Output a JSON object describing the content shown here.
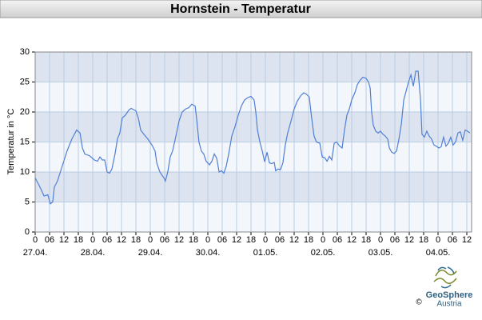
{
  "chart_data": {
    "type": "line",
    "title": "Hornstein - Temperatur",
    "ylabel": "Temperatur in °C",
    "color": "#4f7fd6",
    "x": [
      0,
      2,
      3.7,
      5.3,
      6.3,
      7.3,
      8,
      9.3,
      11.3,
      13.3,
      15.3,
      17.3,
      18.7,
      19.7,
      20.7,
      22.7,
      24.7,
      26,
      27,
      28,
      29,
      30,
      31,
      32,
      33.3,
      34.3,
      35.3,
      36.3,
      37.7,
      39,
      40,
      42,
      43,
      44,
      45.3,
      47,
      48.7,
      50,
      50.7,
      52,
      53.7,
      54.3,
      55.3,
      56.3,
      57.3,
      58.7,
      60,
      61.3,
      62.7,
      64,
      65.3,
      66.7,
      67.3,
      68.3,
      69.3,
      70.3,
      71.3,
      72.7,
      73.7,
      74.7,
      75.7,
      76.7,
      77.7,
      78.7,
      79.7,
      80.7,
      82,
      83.3,
      84.7,
      86,
      87.3,
      88.7,
      90,
      91.3,
      92,
      92.7,
      93.7,
      94.7,
      95.7,
      96.7,
      97.7,
      98.7,
      99.7,
      100.3,
      101.3,
      102.3,
      103.3,
      104.3,
      105.3,
      106.7,
      108,
      109.3,
      110.7,
      112,
      113,
      114.3,
      115.3,
      116.3,
      117.3,
      118.7,
      119.7,
      120.7,
      121.7,
      122.7,
      123.7,
      124.7,
      125.7,
      127,
      128,
      129,
      130,
      131,
      132,
      133.3,
      134.3,
      135.3,
      136.7,
      138,
      139,
      139.7,
      140.3,
      141,
      142,
      143,
      144,
      145,
      146,
      147,
      147.7,
      148.7,
      149.7,
      150.7,
      151.7,
      152.7,
      153.7,
      154.7,
      155.7,
      156.7,
      157.7,
      158.7,
      159.7,
      160.7,
      161.3,
      162.3,
      163.3,
      164.3,
      165.3,
      166.3,
      167.3,
      168.3,
      169.3,
      170.3,
      171.3,
      172.3,
      173.3,
      174.3,
      175.3,
      176.3,
      177.3,
      178.3,
      179.3,
      180.3,
      181.3
    ],
    "values": [
      9,
      7.5,
      6,
      6.2,
      4.7,
      5,
      7.5,
      8.5,
      11,
      13.5,
      15.5,
      17,
      16.5,
      14,
      13,
      12.7,
      12,
      11.8,
      12.5,
      12,
      12,
      10,
      9.8,
      10.5,
      13,
      15.5,
      16.5,
      19,
      19.5,
      20.3,
      20.6,
      20.2,
      19,
      17,
      16.3,
      15.5,
      14.5,
      13.5,
      11.5,
      10,
      9,
      8.5,
      10,
      12.5,
      13.5,
      16,
      18.5,
      20,
      20.5,
      20.7,
      21.3,
      21,
      19,
      15,
      13.5,
      13,
      11.8,
      11.2,
      11.8,
      13,
      12.3,
      10,
      10.2,
      9.8,
      11,
      13,
      16,
      17.5,
      19.5,
      21,
      22,
      22.4,
      22.6,
      22,
      20,
      17,
      15,
      13.5,
      11.7,
      13.3,
      11.5,
      11.4,
      11.6,
      10.2,
      10.5,
      10.4,
      11.5,
      14.5,
      16.5,
      18.5,
      20.5,
      21.8,
      22.7,
      23.2,
      23,
      22.5,
      19,
      16,
      15,
      14.8,
      12.5,
      12.4,
      11.8,
      12.6,
      12,
      14.8,
      15,
      14.3,
      14,
      17,
      19.5,
      20.5,
      22,
      23.2,
      24.5,
      25.2,
      25.8,
      25.6,
      25,
      24,
      20,
      17.8,
      16.8,
      16.5,
      16.8,
      16.3,
      16,
      15.5,
      14,
      13.3,
      13.1,
      13.5,
      15.5,
      18,
      22,
      23.5,
      25,
      26.2,
      24.3,
      26.8,
      26.8,
      22,
      16.3,
      15.8,
      16.8,
      16,
      15.5,
      14.5,
      14.3,
      14,
      14.2,
      15.8,
      14.3,
      14.8,
      15.8,
      14.5,
      15,
      16.5,
      16.7,
      15.3,
      17,
      16.8,
      16.5
    ],
    "xlim": [
      0,
      182
    ],
    "xticks": [
      0,
      {
        "value": 6,
        "label": "06"
      },
      12,
      18,
      {
        "value": 24,
        "label": "0"
      },
      {
        "value": 30,
        "label": "06"
      },
      {
        "value": 36,
        "label": "12"
      },
      {
        "value": 42,
        "label": "18"
      },
      {
        "value": 48,
        "label": "0"
      },
      {
        "value": 54,
        "label": "06"
      },
      {
        "value": 60,
        "label": "12"
      },
      {
        "value": 66,
        "label": "18"
      },
      {
        "value": 72,
        "label": "0"
      },
      {
        "value": 78,
        "label": "06"
      },
      {
        "value": 84,
        "label": "12"
      },
      {
        "value": 90,
        "label": "18"
      },
      {
        "value": 96,
        "label": "0"
      },
      {
        "value": 102,
        "label": "06"
      },
      {
        "value": 108,
        "label": "12"
      },
      {
        "value": 114,
        "label": "18"
      },
      {
        "value": 120,
        "label": "0"
      },
      {
        "value": 126,
        "label": "06"
      },
      {
        "value": 132,
        "label": "12"
      },
      {
        "value": 138,
        "label": "18"
      },
      {
        "value": 144,
        "label": "0"
      },
      {
        "value": 150,
        "label": "06"
      },
      {
        "value": 156,
        "label": "12"
      },
      {
        "value": 162,
        "label": "18"
      },
      {
        "value": 168,
        "label": "0"
      },
      {
        "value": 174,
        "label": "06"
      },
      {
        "value": 180,
        "label": "12"
      }
    ],
    "date_labels": [
      {
        "value": 0,
        "label": "27.04."
      },
      {
        "value": 24,
        "label": "28.04."
      },
      {
        "value": 48,
        "label": "29.04."
      },
      {
        "value": 72,
        "label": "30.04."
      },
      {
        "value": 96,
        "label": "01.05."
      },
      {
        "value": 120,
        "label": "02.05."
      },
      {
        "value": 144,
        "label": "03.05."
      },
      {
        "value": 168,
        "label": "04.05."
      }
    ],
    "ylim": [
      0,
      30
    ],
    "yticks": [
      0,
      5,
      10,
      15,
      20,
      25,
      30
    ],
    "grid": true
  },
  "logo": {
    "name": "GeoSphere",
    "sub": "Austria",
    "copyright": "©"
  }
}
